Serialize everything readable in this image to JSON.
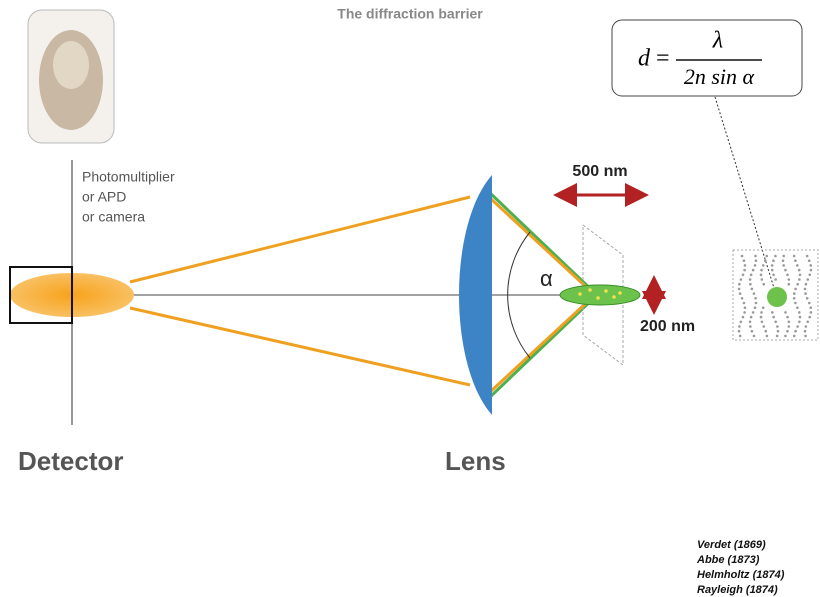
{
  "title": "The diffraction barrier",
  "detector": {
    "lines": [
      "Photomultiplier",
      "or APD",
      "or camera"
    ],
    "label": "Detector"
  },
  "lens": {
    "label": "Lens",
    "angle": "α"
  },
  "sizes": {
    "lateral": "500 nm",
    "axial": "200 nm"
  },
  "formula": {
    "lhs": "d",
    "equals": "=",
    "numerator": "λ",
    "denominator": "2n sin α"
  },
  "references": [
    "Verdet (1869)",
    "Abbe (1873)",
    "Helmholtz (1874)",
    "Rayleigh (1874)"
  ]
}
